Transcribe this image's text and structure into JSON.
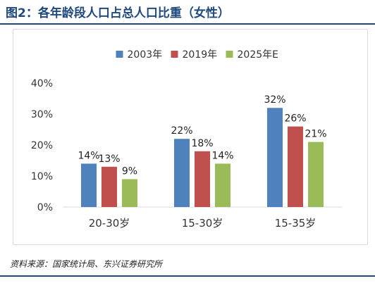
{
  "title": "图2：各年龄段人口占总人口比重（女性）",
  "source": "资料来源：国家统计局、东兴证券研究所",
  "chart_data": {
    "type": "bar",
    "categories": [
      "20-30岁",
      "15-30岁",
      "15-35岁"
    ],
    "series": [
      {
        "name": "2003年",
        "color": "#4f81bd",
        "values": [
          14,
          22,
          32
        ],
        "labels": [
          "14%",
          "22%",
          "32%"
        ]
      },
      {
        "name": "2019年",
        "color": "#c0504d",
        "values": [
          13,
          18,
          26
        ],
        "labels": [
          "13%",
          "18%",
          "26%"
        ]
      },
      {
        "name": "2025年E",
        "color": "#9bbb59",
        "values": [
          9,
          14,
          21
        ],
        "labels": [
          "9%",
          "14%",
          "21%"
        ]
      }
    ],
    "ylim": [
      0,
      40
    ],
    "yticks": [
      "0%",
      "10%",
      "20%",
      "30%",
      "40%"
    ],
    "legend_position": "top",
    "grid": false
  }
}
